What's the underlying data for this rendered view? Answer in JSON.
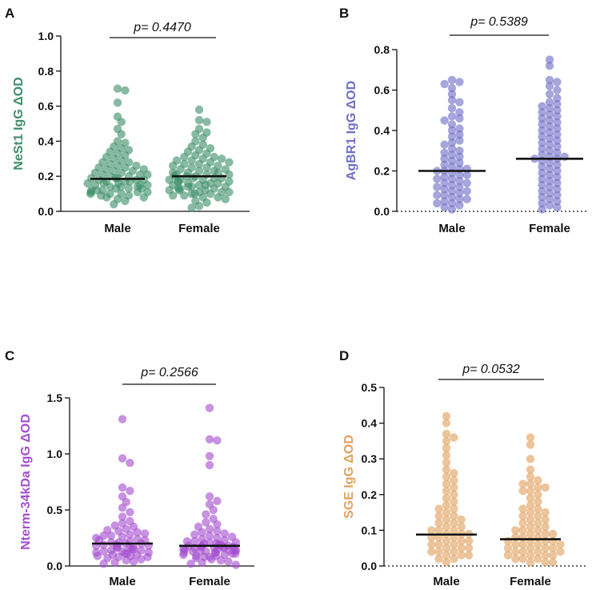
{
  "chart_data": [
    {
      "type": "scatter",
      "panel": "A",
      "ylabel": "NeSt1 IgG ΔOD",
      "color": "#3f8f6a",
      "categories": [
        "Male",
        "Female"
      ],
      "ylim": [
        0,
        1.0
      ],
      "yticks": [
        0.0,
        0.2,
        0.4,
        0.6,
        0.8,
        1.0
      ],
      "tick_labels": [
        "0.0",
        "0.2",
        "0.4",
        "0.6",
        "0.8",
        "1.0"
      ],
      "pvalue": "p= 0.4470",
      "zero_line_dotted": false,
      "series": [
        {
          "name": "Male",
          "median": 0.185,
          "values": [
            0.7,
            0.69,
            0.62,
            0.54,
            0.51,
            0.47,
            0.44,
            0.4,
            0.39,
            0.37,
            0.36,
            0.35,
            0.34,
            0.33,
            0.32,
            0.31,
            0.3,
            0.29,
            0.28,
            0.28,
            0.27,
            0.26,
            0.26,
            0.25,
            0.25,
            0.24,
            0.24,
            0.23,
            0.23,
            0.22,
            0.22,
            0.21,
            0.21,
            0.21,
            0.2,
            0.2,
            0.19,
            0.19,
            0.19,
            0.18,
            0.18,
            0.18,
            0.17,
            0.17,
            0.17,
            0.16,
            0.16,
            0.16,
            0.15,
            0.15,
            0.15,
            0.14,
            0.14,
            0.14,
            0.13,
            0.13,
            0.13,
            0.12,
            0.12,
            0.12,
            0.11,
            0.11,
            0.11,
            0.1,
            0.1,
            0.1,
            0.09,
            0.09,
            0.08,
            0.08,
            0.07,
            0.06,
            0.04
          ]
        },
        {
          "name": "Female",
          "median": 0.2,
          "values": [
            0.58,
            0.52,
            0.51,
            0.47,
            0.45,
            0.44,
            0.42,
            0.4,
            0.38,
            0.37,
            0.36,
            0.35,
            0.34,
            0.33,
            0.32,
            0.31,
            0.31,
            0.3,
            0.3,
            0.29,
            0.29,
            0.28,
            0.28,
            0.27,
            0.27,
            0.26,
            0.26,
            0.25,
            0.25,
            0.24,
            0.24,
            0.23,
            0.23,
            0.22,
            0.22,
            0.22,
            0.21,
            0.21,
            0.21,
            0.2,
            0.2,
            0.2,
            0.19,
            0.19,
            0.19,
            0.18,
            0.18,
            0.18,
            0.17,
            0.17,
            0.17,
            0.16,
            0.16,
            0.16,
            0.15,
            0.15,
            0.15,
            0.14,
            0.14,
            0.14,
            0.13,
            0.13,
            0.13,
            0.12,
            0.12,
            0.12,
            0.11,
            0.11,
            0.11,
            0.1,
            0.1,
            0.1,
            0.09,
            0.09,
            0.08,
            0.08,
            0.07,
            0.06,
            0.05,
            0.03,
            0.02
          ]
        }
      ]
    },
    {
      "type": "scatter",
      "panel": "B",
      "ylabel": "AgBR1 IgG ΔOD",
      "color": "#6f6fc8",
      "categories": [
        "Male",
        "Female"
      ],
      "ylim": [
        0,
        0.8
      ],
      "yticks": [
        0.0,
        0.2,
        0.4,
        0.6,
        0.8
      ],
      "tick_labels": [
        "0.0",
        "0.2",
        "0.4",
        "0.6",
        "0.8"
      ],
      "pvalue": "p= 0.5389",
      "zero_line_dotted": true,
      "series": [
        {
          "name": "Male",
          "median": 0.2,
          "values": [
            0.65,
            0.64,
            0.63,
            0.61,
            0.58,
            0.55,
            0.54,
            0.51,
            0.49,
            0.47,
            0.46,
            0.45,
            0.43,
            0.41,
            0.4,
            0.38,
            0.37,
            0.35,
            0.34,
            0.33,
            0.31,
            0.3,
            0.29,
            0.28,
            0.27,
            0.26,
            0.25,
            0.24,
            0.23,
            0.22,
            0.21,
            0.21,
            0.2,
            0.2,
            0.19,
            0.18,
            0.18,
            0.17,
            0.16,
            0.16,
            0.15,
            0.14,
            0.14,
            0.13,
            0.12,
            0.12,
            0.11,
            0.1,
            0.1,
            0.09,
            0.08,
            0.08,
            0.07,
            0.06,
            0.06,
            0.05,
            0.04,
            0.04,
            0.03,
            0.02,
            0.01
          ]
        },
        {
          "name": "Female",
          "median": 0.26,
          "values": [
            0.75,
            0.72,
            0.65,
            0.64,
            0.62,
            0.6,
            0.58,
            0.56,
            0.54,
            0.53,
            0.52,
            0.51,
            0.5,
            0.49,
            0.48,
            0.47,
            0.46,
            0.45,
            0.44,
            0.43,
            0.42,
            0.41,
            0.4,
            0.39,
            0.38,
            0.37,
            0.36,
            0.35,
            0.34,
            0.33,
            0.32,
            0.31,
            0.3,
            0.29,
            0.28,
            0.27,
            0.27,
            0.26,
            0.26,
            0.25,
            0.24,
            0.23,
            0.22,
            0.21,
            0.2,
            0.19,
            0.18,
            0.17,
            0.16,
            0.15,
            0.14,
            0.13,
            0.12,
            0.11,
            0.1,
            0.09,
            0.08,
            0.07,
            0.06,
            0.05,
            0.04,
            0.03,
            0.02,
            0.01
          ]
        }
      ]
    },
    {
      "type": "scatter",
      "panel": "C",
      "ylabel": "Nterm-34kDa IgG ΔOD",
      "color": "#a44fcf",
      "categories": [
        "Male",
        "Female"
      ],
      "ylim": [
        0,
        1.5
      ],
      "yticks": [
        0.0,
        0.5,
        1.0,
        1.5
      ],
      "tick_labels": [
        "0.0",
        "0.5",
        "1.0",
        "1.5"
      ],
      "pvalue": "p= 0.2566",
      "zero_line_dotted": false,
      "series": [
        {
          "name": "Male",
          "median": 0.2,
          "values": [
            1.31,
            0.96,
            0.92,
            0.7,
            0.67,
            0.62,
            0.57,
            0.52,
            0.48,
            0.44,
            0.4,
            0.38,
            0.36,
            0.35,
            0.33,
            0.32,
            0.31,
            0.3,
            0.29,
            0.28,
            0.27,
            0.27,
            0.26,
            0.25,
            0.24,
            0.23,
            0.23,
            0.22,
            0.21,
            0.21,
            0.2,
            0.2,
            0.19,
            0.19,
            0.18,
            0.18,
            0.17,
            0.17,
            0.16,
            0.16,
            0.15,
            0.15,
            0.14,
            0.14,
            0.13,
            0.13,
            0.12,
            0.12,
            0.11,
            0.11,
            0.1,
            0.1,
            0.09,
            0.09,
            0.08,
            0.08,
            0.07,
            0.06,
            0.05,
            0.04,
            0.03,
            0.02
          ]
        },
        {
          "name": "Female",
          "median": 0.18,
          "values": [
            1.41,
            1.13,
            1.12,
            0.98,
            0.9,
            0.62,
            0.58,
            0.55,
            0.5,
            0.46,
            0.42,
            0.39,
            0.37,
            0.35,
            0.33,
            0.31,
            0.3,
            0.29,
            0.28,
            0.27,
            0.26,
            0.25,
            0.24,
            0.23,
            0.22,
            0.22,
            0.21,
            0.21,
            0.2,
            0.2,
            0.19,
            0.19,
            0.18,
            0.18,
            0.18,
            0.17,
            0.17,
            0.17,
            0.16,
            0.16,
            0.16,
            0.15,
            0.15,
            0.15,
            0.14,
            0.14,
            0.14,
            0.13,
            0.13,
            0.13,
            0.12,
            0.12,
            0.12,
            0.11,
            0.11,
            0.1,
            0.1,
            0.09,
            0.09,
            0.08,
            0.08,
            0.07,
            0.06,
            0.05,
            0.04,
            0.03,
            0.02,
            0.01
          ]
        }
      ]
    },
    {
      "type": "scatter",
      "panel": "D",
      "ylabel": "SGE IgG ΔOD",
      "color": "#e0a160",
      "categories": [
        "Male",
        "Female"
      ],
      "ylim": [
        0,
        0.5
      ],
      "yticks": [
        0.0,
        0.1,
        0.2,
        0.3,
        0.4,
        0.5
      ],
      "tick_labels": [
        "0.0",
        "0.1",
        "0.2",
        "0.3",
        "0.4",
        "0.5"
      ],
      "pvalue": "p= 0.0532",
      "zero_line_dotted": true,
      "series": [
        {
          "name": "Male",
          "median": 0.088,
          "values": [
            0.42,
            0.4,
            0.37,
            0.36,
            0.35,
            0.33,
            0.31,
            0.29,
            0.27,
            0.26,
            0.25,
            0.24,
            0.23,
            0.22,
            0.21,
            0.2,
            0.19,
            0.18,
            0.17,
            0.16,
            0.16,
            0.15,
            0.14,
            0.14,
            0.13,
            0.13,
            0.12,
            0.12,
            0.11,
            0.11,
            0.1,
            0.1,
            0.1,
            0.09,
            0.09,
            0.09,
            0.08,
            0.08,
            0.08,
            0.07,
            0.07,
            0.07,
            0.06,
            0.06,
            0.06,
            0.05,
            0.05,
            0.05,
            0.04,
            0.04,
            0.04,
            0.03,
            0.03,
            0.03,
            0.02,
            0.02,
            0.01
          ]
        },
        {
          "name": "Female",
          "median": 0.075,
          "values": [
            0.36,
            0.34,
            0.3,
            0.27,
            0.25,
            0.24,
            0.23,
            0.23,
            0.22,
            0.22,
            0.21,
            0.21,
            0.2,
            0.19,
            0.18,
            0.17,
            0.16,
            0.16,
            0.15,
            0.15,
            0.14,
            0.14,
            0.13,
            0.13,
            0.12,
            0.12,
            0.11,
            0.11,
            0.1,
            0.1,
            0.1,
            0.09,
            0.09,
            0.09,
            0.08,
            0.08,
            0.08,
            0.07,
            0.07,
            0.07,
            0.07,
            0.06,
            0.06,
            0.06,
            0.06,
            0.05,
            0.05,
            0.05,
            0.05,
            0.04,
            0.04,
            0.04,
            0.04,
            0.03,
            0.03,
            0.03,
            0.03,
            0.02,
            0.02,
            0.02,
            0.01,
            0.01,
            0.01
          ]
        }
      ]
    }
  ]
}
